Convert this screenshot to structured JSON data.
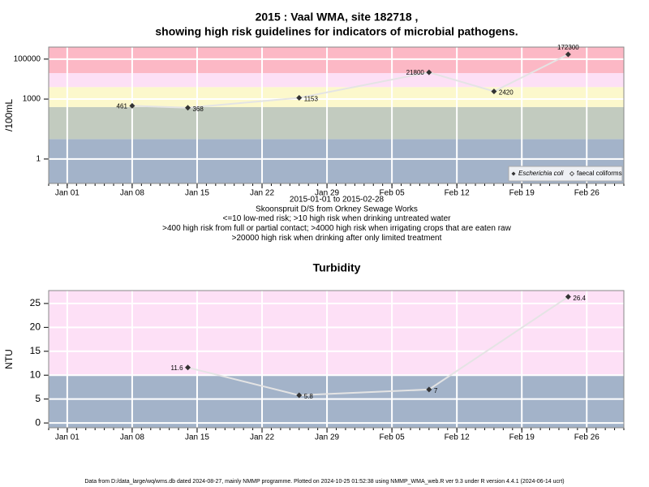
{
  "chart_data": [
    {
      "type": "line",
      "title": [
        "2015 : Vaal WMA, site 182718 ,",
        "showing high risk guidelines for indicators of microbial pathogens."
      ],
      "ylabel": "/100mL",
      "notes": [
        "2015-01-01 to 2015-02-28",
        "Skoonspruit D/S from Orkney Sewage Works",
        "<=10 low-med risk; >10 high risk when drinking untreated water",
        ">400 high risk from full or partial contact; >4000 high risk when irrigating crops that are eaten raw",
        ">20000 high risk when drinking after only limited treatment"
      ],
      "ylog": true,
      "ylim": [
        0.06,
        400000
      ],
      "yticks": [
        1,
        1000,
        100000
      ],
      "xlim": [
        "2014-12-30",
        "2015-03-02"
      ],
      "xticks": [
        {
          "value": "2015-01-01",
          "label": "Jan 01"
        },
        {
          "value": "2015-01-08",
          "label": "Jan 08"
        },
        {
          "value": "2015-01-15",
          "label": "Jan 15"
        },
        {
          "value": "2015-01-22",
          "label": "Jan 22"
        },
        {
          "value": "2015-01-29",
          "label": "Jan 29"
        },
        {
          "value": "2015-02-05",
          "label": "Feb 05"
        },
        {
          "value": "2015-02-12",
          "label": "Feb 12"
        },
        {
          "value": "2015-02-19",
          "label": "Feb 19"
        },
        {
          "value": "2015-02-26",
          "label": "Feb 26"
        }
      ],
      "band_limits": [
        10,
        400,
        4000,
        20000
      ],
      "band_colors": [
        "#a3b3c9",
        "#c2cbbf",
        "#fcf8cc",
        "#fde0f6",
        "#fcb8c5"
      ],
      "grid": true,
      "legend": "bottom-right",
      "x": [
        "2015-01-08",
        "2015-01-14",
        "2015-01-26",
        "2015-02-09",
        "2015-02-16",
        "2015-02-24"
      ],
      "series": [
        {
          "name": "Escherichia coli",
          "color": "#333333",
          "values": [
            461,
            368,
            1153,
            21800,
            2420,
            172300
          ]
        },
        {
          "name": "faecal coliforms",
          "color": "#333333",
          "values": [
            null,
            null,
            null,
            null,
            null,
            null
          ]
        }
      ]
    },
    {
      "type": "line",
      "title": [
        "Turbidity"
      ],
      "ylabel": "NTU",
      "ylog": false,
      "ylim": [
        -1,
        27.7
      ],
      "yticks": [
        0,
        5,
        10,
        15,
        20,
        25
      ],
      "xlim": [
        "2014-12-30",
        "2015-03-02"
      ],
      "xticks": [
        {
          "value": "2015-01-01",
          "label": "Jan 01"
        },
        {
          "value": "2015-01-08",
          "label": "Jan 08"
        },
        {
          "value": "2015-01-15",
          "label": "Jan 15"
        },
        {
          "value": "2015-01-22",
          "label": "Jan 22"
        },
        {
          "value": "2015-01-29",
          "label": "Jan 29"
        },
        {
          "value": "2015-02-05",
          "label": "Feb 05"
        },
        {
          "value": "2015-02-12",
          "label": "Feb 12"
        },
        {
          "value": "2015-02-19",
          "label": "Feb 19"
        },
        {
          "value": "2015-02-26",
          "label": "Feb 26"
        }
      ],
      "band_limits": [
        10
      ],
      "band_colors": [
        "#a3b3c9",
        "#fde0f6"
      ],
      "grid": true,
      "x": [
        "2015-01-14",
        "2015-01-26",
        "2015-02-09",
        "2015-02-24"
      ],
      "series": [
        {
          "name": "Turbidity",
          "color": "#333333",
          "values": [
            11.6,
            5.8,
            7,
            26.4
          ]
        }
      ]
    }
  ],
  "footer": "Data from D:/data_large/wq/wms.db dated 2024-08-27, mainly NMMP programme. Plotted on 2024-10-25 01:52:38 using NMMP_WMA_web.R ver 9.3 under R version 4.4.1 (2024-06-14 ucrt)"
}
